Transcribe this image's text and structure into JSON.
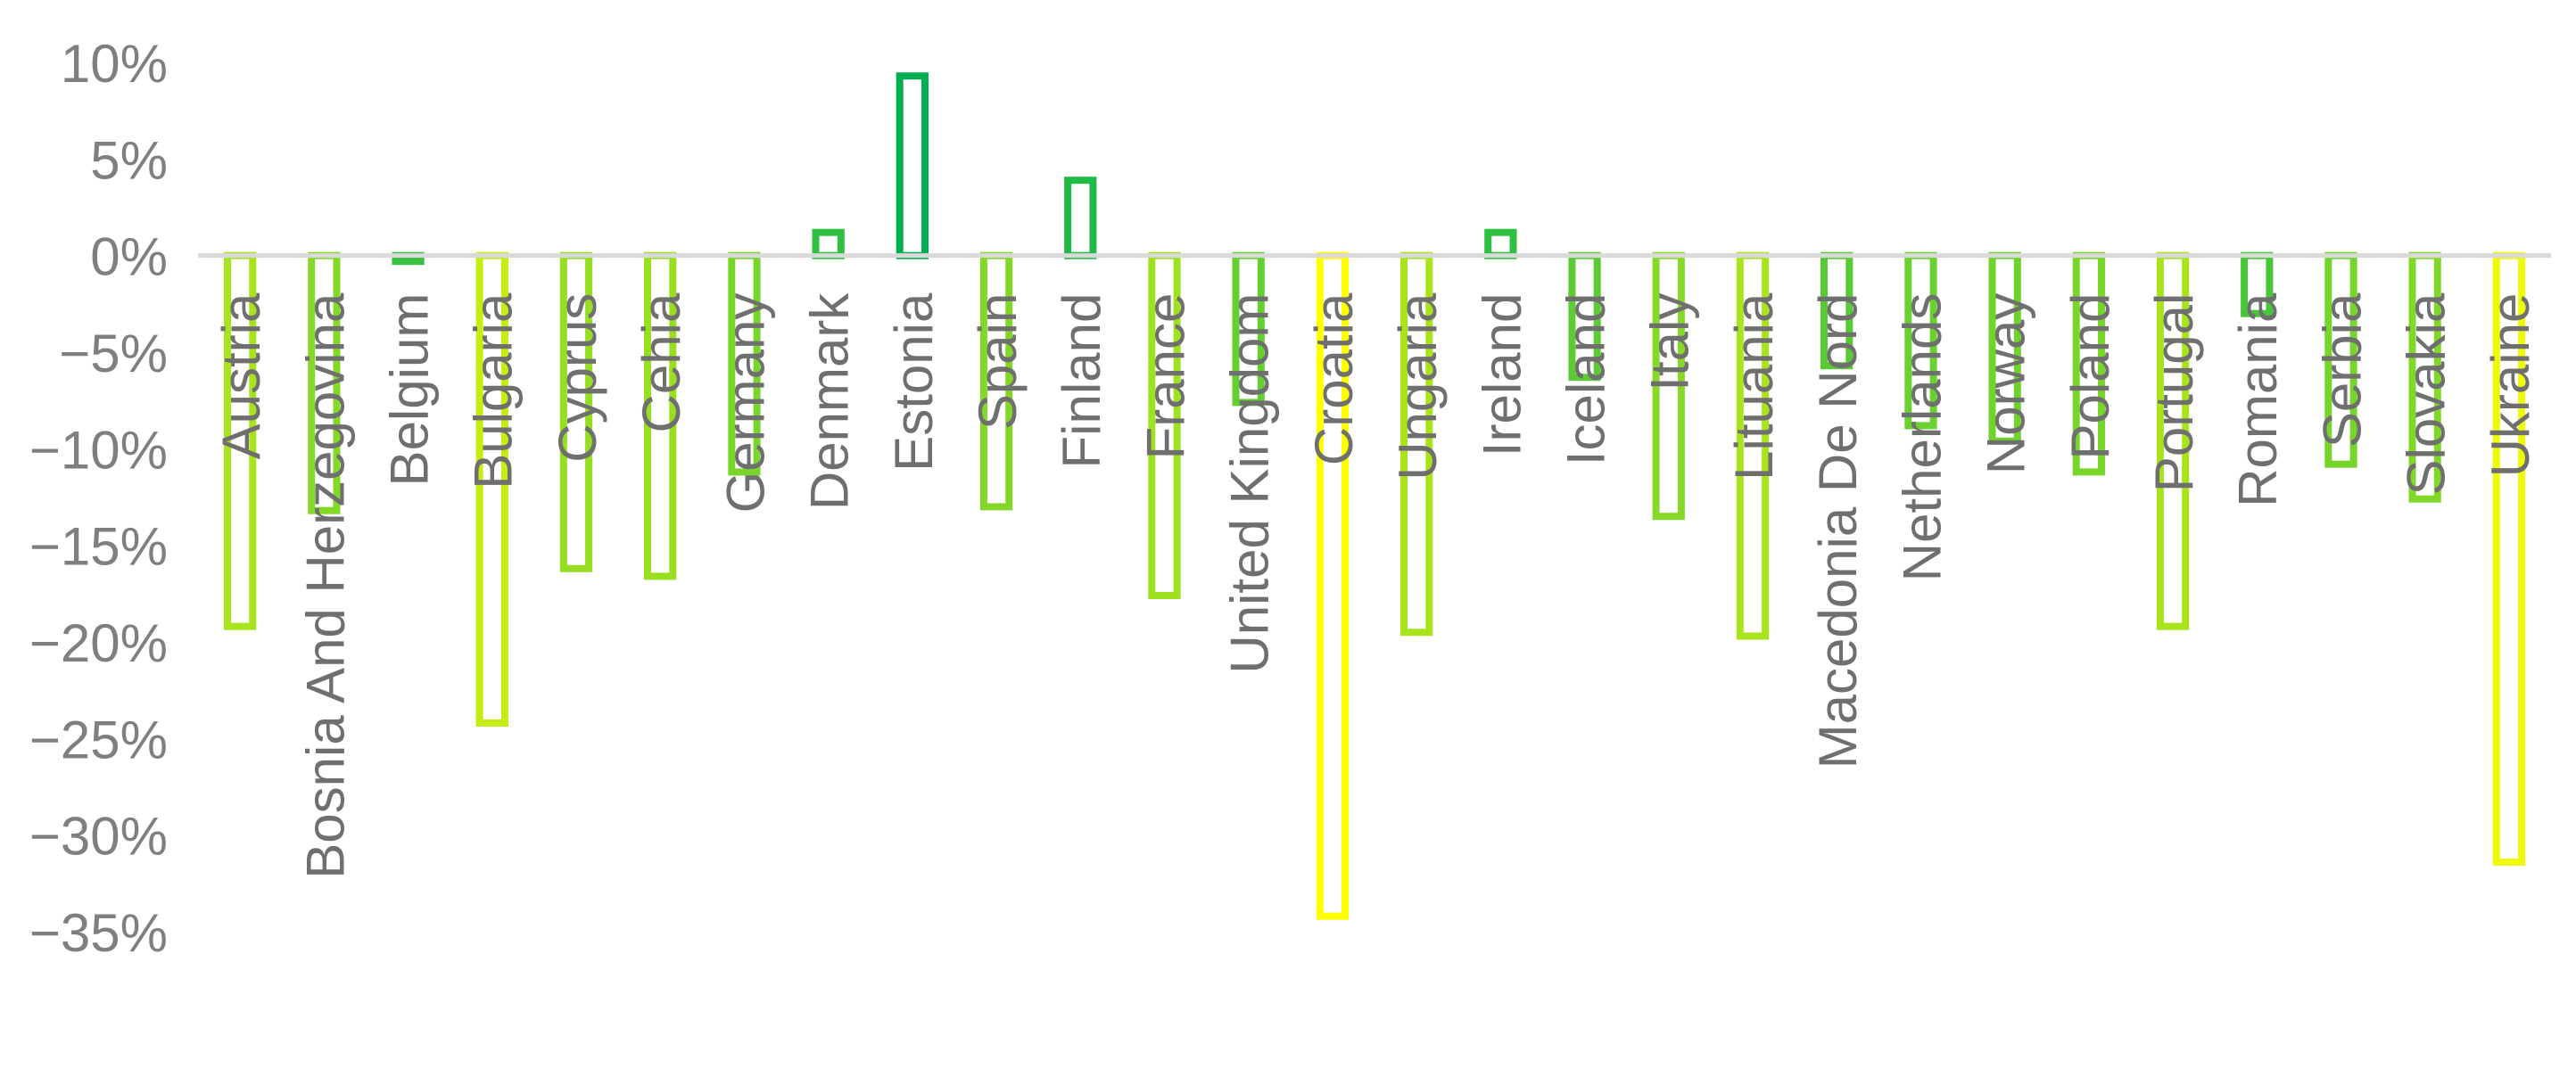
{
  "chart_data": {
    "type": "bar",
    "ylim": [
      -35,
      10
    ],
    "ytick_values": [
      10,
      5,
      0,
      -5,
      -10,
      -15,
      -20,
      -25,
      -30,
      -35
    ],
    "ytick_labels": [
      "10%",
      "5%",
      "0%",
      "−5%",
      "−10%",
      "−15%",
      "−20%",
      "−25%",
      "−30%",
      "−35%"
    ],
    "categories": [
      "Austria",
      "Bosnia And Herzegovina",
      "Belgium",
      "Bulgaria",
      "Cyprus",
      "Cehia",
      "Germany",
      "Denmark",
      "Estonia",
      "Spain",
      "Finland",
      "France",
      "United Kingdom",
      "Croatia",
      "Ungaria",
      "Ireland",
      "Iceland",
      "Italy",
      "Lituania",
      "Macedonia De Nord",
      "Netherlands",
      "Norway",
      "Poland",
      "Portugal",
      "Romania",
      "Serbia",
      "Slovakia",
      "Ukraine"
    ],
    "values": [
      -19.2,
      -13.2,
      -0.3,
      -24.2,
      -16.2,
      -16.6,
      -11.2,
      1.2,
      9.3,
      -13.0,
      3.9,
      -17.6,
      -7.6,
      -34.2,
      -19.5,
      1.2,
      -6.3,
      -13.5,
      -19.7,
      -5.7,
      -8.8,
      -9.6,
      -11.2,
      -19.2,
      -3.0,
      -10.8,
      -12.6,
      -31.4
    ],
    "grid": false,
    "legend": "none",
    "colors": {
      "high": "#00b050",
      "low": "#ffff00",
      "axis": "#d9d9d9"
    }
  }
}
